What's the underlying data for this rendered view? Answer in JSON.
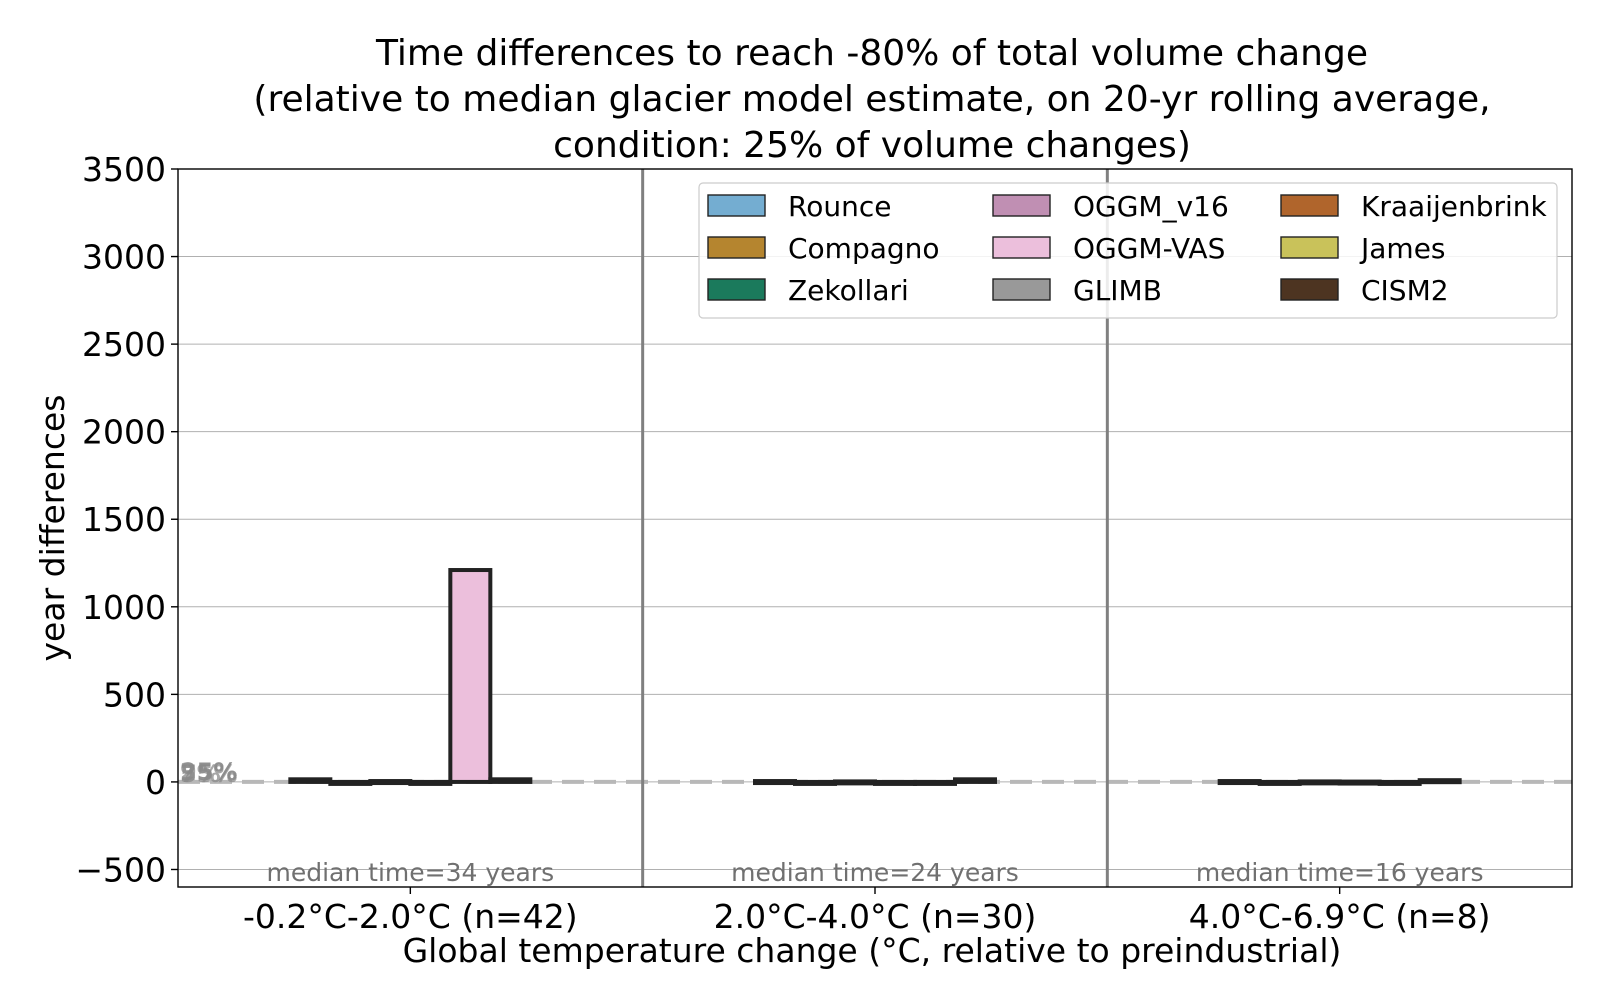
{
  "chart_data": {
    "type": "bar",
    "title_lines": [
      "Time differences to reach -80% of total volume change",
      "(relative to median glacier model estimate, on 20-yr rolling average,",
      "condition: 25% of volume changes)"
    ],
    "xlabel": "Global temperature change (°C, relative to preindustrial)",
    "ylabel": "year differences",
    "ylim": [
      -600,
      3500
    ],
    "yticks": [
      -500,
      0,
      500,
      1000,
      1500,
      2000,
      2500,
      3000,
      3500
    ],
    "ytick_labels": [
      "−500",
      "0",
      "500",
      "1000",
      "1500",
      "2000",
      "2500",
      "3000",
      "3500"
    ],
    "grid": true,
    "legend_position": "top-right",
    "categories": [
      "-0.2°C-2.0°C (n=42)",
      "2.0°C-4.0°C (n=30)",
      "4.0°C-6.9°C (n=8)"
    ],
    "annotations": [
      "median time=34 years",
      "median time=24 years",
      "median time=16 years"
    ],
    "pct_labels": [
      "95%",
      "75%",
      "25%",
      "5%"
    ],
    "series": [
      {
        "name": "Rounce",
        "color": "#74add1",
        "values": [
          null,
          null,
          null
        ]
      },
      {
        "name": "Compagno",
        "color": "#b5852f",
        "values": [
          null,
          null,
          null
        ]
      },
      {
        "name": "Zekollari",
        "color": "#1b7a5c",
        "values": [
          null,
          null,
          null
        ]
      },
      {
        "name": "OGGM_v16",
        "color": "#c08fb3",
        "values": [
          null,
          null,
          null
        ]
      },
      {
        "name": "OGGM-VAS",
        "color": "#ecbfdc",
        "values": [
          null,
          null,
          null
        ]
      },
      {
        "name": "GLIMB",
        "color": "#999999",
        "values": [
          null,
          null,
          null
        ]
      },
      {
        "name": "Kraaijenbrink",
        "color": "#b0652c",
        "values": [
          null,
          null,
          null
        ]
      },
      {
        "name": "James",
        "color": "#c9c25a",
        "values": [
          null,
          null,
          null
        ]
      },
      {
        "name": "CISM2",
        "color": "#4d3421",
        "values": [
          null,
          null,
          null
        ]
      }
    ],
    "bar_groups": [
      {
        "bars": [
          {
            "color": "#b5852f",
            "value": 15
          },
          {
            "color": "#1b7a5c",
            "value": -10
          },
          {
            "color": "#74add1",
            "value": 5
          },
          {
            "color": "#c08fb3",
            "value": -5
          },
          {
            "color": "#ecbfdc",
            "value": 1210
          },
          {
            "color": "#4d3421",
            "value": 15
          }
        ]
      },
      {
        "bars": [
          {
            "color": "#b5852f",
            "value": 5
          },
          {
            "color": "#1b7a5c",
            "value": -3
          },
          {
            "color": "#74add1",
            "value": 3
          },
          {
            "color": "#c08fb3",
            "value": -2
          },
          {
            "color": "#ecbfdc",
            "value": -8
          },
          {
            "color": "#4d3421",
            "value": 15
          }
        ]
      },
      {
        "bars": [
          {
            "color": "#b5852f",
            "value": 5
          },
          {
            "color": "#1b7a5c",
            "value": -3
          },
          {
            "color": "#74add1",
            "value": 3
          },
          {
            "color": "#c08fb3",
            "value": 2
          },
          {
            "color": "#ecbfdc",
            "value": -3
          },
          {
            "color": "#4d3421",
            "value": 10
          }
        ]
      }
    ]
  }
}
